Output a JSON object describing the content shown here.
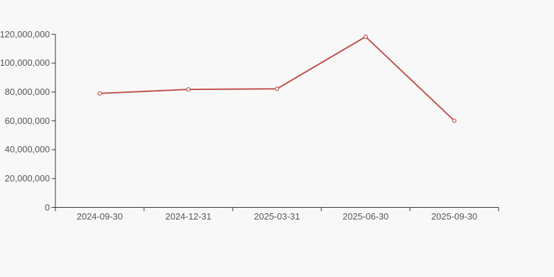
{
  "background": "#f8f8f8",
  "colors": {
    "line": "#c0504d",
    "marker_fill": "#ffffff",
    "axis": "#333333",
    "label": "#555555"
  },
  "chart_data": {
    "type": "line",
    "title": "",
    "xlabel": "",
    "ylabel": "",
    "categories": [
      "2024-09-30",
      "2024-12-31",
      "2025-03-31",
      "2025-06-30",
      "2025-09-30"
    ],
    "series": [
      {
        "name": "value",
        "values": [
          79000000,
          81800000,
          82200000,
          118300000,
          60100000
        ]
      }
    ],
    "ylim": [
      0,
      120000000
    ],
    "ytick_step": 20000000,
    "ytick_labels": [
      "0",
      "20,000,000",
      "40,000,000",
      "60,000,000",
      "80,000,000",
      "100,000,000",
      "120,000,000"
    ],
    "grid": false,
    "legend": false,
    "marker": "hollow-circle"
  }
}
